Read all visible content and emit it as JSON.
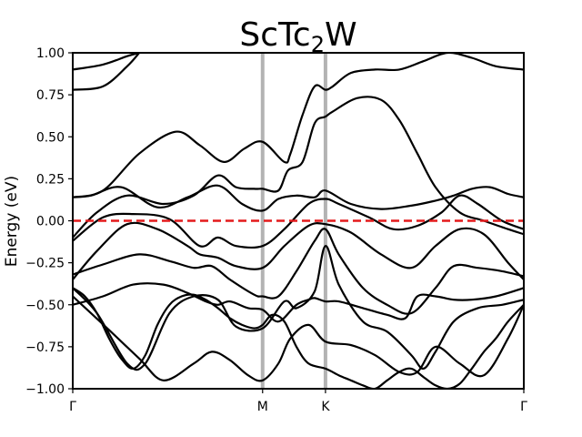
{
  "chart_data": {
    "type": "line",
    "title_main": "ScTc",
    "title_sub": "2",
    "title_tail": "W",
    "ylabel": "Energy (eV)",
    "xlabel": "",
    "ylim": [
      -1.0,
      1.0
    ],
    "xlim": [
      0,
      3.73
    ],
    "grid": false,
    "y_ticks": [
      -1.0,
      -0.75,
      -0.5,
      -0.25,
      0.0,
      0.25,
      0.5,
      0.75,
      1.0
    ],
    "y_tick_labels": [
      "−1.00",
      "−0.75",
      "−0.50",
      "−0.25",
      "0.00",
      "0.25",
      "0.50",
      "0.75",
      "1.00"
    ],
    "kpoints": [
      {
        "label": "Γ",
        "x": 0
      },
      {
        "label": "M",
        "x": 1.57
      },
      {
        "label": "K",
        "x": 2.09
      },
      {
        "label": "Γ",
        "x": 3.73
      }
    ],
    "fermi_level": 0.0,
    "colors": {
      "bands": "#000000",
      "fermi": "#e31a1c",
      "kpath": "#b3b3b3"
    },
    "series": [
      {
        "x": [
          0,
          0.25,
          0.45,
          0.55
        ],
        "values": [
          0.9,
          0.93,
          0.98,
          1.0
        ]
      },
      {
        "x": [
          0,
          0.25,
          0.45,
          0.55
        ],
        "values": [
          0.78,
          0.8,
          0.92,
          1.0
        ]
      },
      {
        "x": [
          0,
          0.25,
          0.55,
          0.85,
          1.05,
          1.25,
          1.42,
          1.57,
          1.75,
          1.8,
          1.9,
          2.0,
          2.09,
          2.15,
          2.3,
          2.5,
          2.7,
          2.9,
          3.1,
          3.3,
          3.5,
          3.73
        ],
        "values": [
          0.14,
          0.18,
          0.4,
          0.53,
          0.45,
          0.35,
          0.43,
          0.47,
          0.35,
          0.4,
          0.63,
          0.8,
          0.78,
          0.8,
          0.88,
          0.9,
          0.9,
          0.95,
          1.0,
          0.97,
          0.92,
          0.9
        ]
      },
      {
        "x": [
          0,
          0.2,
          0.45,
          0.75,
          1.0,
          1.2,
          1.35,
          1.5,
          1.57,
          1.7,
          1.78,
          1.9,
          2.0,
          2.09,
          2.15,
          2.35,
          2.55,
          2.7,
          2.85,
          3.0,
          3.2,
          3.4,
          3.6,
          3.73
        ],
        "values": [
          -0.1,
          0.05,
          0.15,
          0.1,
          0.15,
          0.27,
          0.2,
          0.19,
          0.19,
          0.18,
          0.3,
          0.35,
          0.58,
          0.62,
          0.65,
          0.73,
          0.72,
          0.6,
          0.4,
          0.2,
          0.05,
          0.0,
          -0.05,
          -0.08
        ]
      },
      {
        "x": [
          0,
          0.15,
          0.4,
          0.7,
          0.95,
          1.2,
          1.4,
          1.57,
          1.7,
          1.85,
          2.0,
          2.09,
          2.3,
          2.55,
          2.8,
          3.0,
          3.15,
          3.3,
          3.45,
          3.6,
          3.73
        ],
        "values": [
          0.14,
          0.15,
          0.2,
          0.08,
          0.14,
          0.21,
          0.1,
          0.06,
          0.13,
          0.15,
          0.14,
          0.18,
          0.1,
          0.07,
          0.09,
          0.12,
          0.15,
          0.19,
          0.2,
          0.16,
          0.14
        ]
      },
      {
        "x": [
          0,
          0.25,
          0.5,
          0.8,
          1.05,
          1.2,
          1.35,
          1.57,
          1.75,
          1.95,
          2.09,
          2.2,
          2.45,
          2.65,
          2.85,
          3.05,
          3.2,
          3.35,
          3.55,
          3.73
        ],
        "values": [
          -0.12,
          0.02,
          0.04,
          0.01,
          -0.15,
          -0.1,
          -0.15,
          -0.15,
          -0.05,
          0.1,
          0.13,
          0.1,
          0.02,
          -0.05,
          -0.03,
          0.05,
          0.15,
          0.1,
          0.0,
          -0.05
        ]
      },
      {
        "x": [
          0,
          0.2,
          0.45,
          0.7,
          0.95,
          1.05,
          1.2,
          1.35,
          1.57,
          1.75,
          1.95,
          2.09,
          2.3,
          2.55,
          2.8,
          3.0,
          3.2,
          3.4,
          3.6,
          3.73
        ],
        "values": [
          -0.35,
          -0.18,
          -0.02,
          -0.05,
          -0.15,
          -0.2,
          -0.22,
          -0.27,
          -0.28,
          -0.15,
          -0.03,
          -0.02,
          -0.07,
          -0.2,
          -0.28,
          -0.15,
          -0.05,
          -0.08,
          -0.25,
          -0.35
        ]
      },
      {
        "x": [
          0,
          0.25,
          0.55,
          0.8,
          1.0,
          1.15,
          1.3,
          1.5,
          1.57,
          1.7,
          1.85,
          2.0,
          2.09,
          2.2,
          2.4,
          2.6,
          2.8,
          3.0,
          3.15,
          3.35,
          3.55,
          3.73
        ],
        "values": [
          -0.32,
          -0.26,
          -0.2,
          -0.24,
          -0.28,
          -0.27,
          -0.35,
          -0.44,
          -0.45,
          -0.45,
          -0.3,
          -0.12,
          -0.05,
          -0.2,
          -0.4,
          -0.5,
          -0.55,
          -0.4,
          -0.27,
          -0.28,
          -0.3,
          -0.33
        ]
      },
      {
        "x": [
          0,
          0.25,
          0.5,
          0.75,
          0.95,
          1.1,
          1.2,
          1.3,
          1.45,
          1.57,
          1.7,
          1.85,
          1.95,
          2.0,
          2.09,
          2.2,
          2.4,
          2.6,
          2.75,
          2.85,
          3.0,
          3.15,
          3.3,
          3.5,
          3.73
        ],
        "values": [
          -0.5,
          -0.45,
          -0.38,
          -0.38,
          -0.43,
          -0.48,
          -0.5,
          -0.48,
          -0.52,
          -0.53,
          -0.6,
          -0.5,
          -0.47,
          -0.46,
          -0.48,
          -0.48,
          -0.52,
          -0.56,
          -0.58,
          -0.45,
          -0.45,
          -0.47,
          -0.47,
          -0.45,
          -0.4
        ]
      },
      {
        "x": [
          0,
          0.2,
          0.45,
          0.6,
          0.8,
          1.0,
          1.2,
          1.35,
          1.57,
          1.75,
          1.85,
          2.0,
          2.09,
          2.2,
          2.4,
          2.6,
          2.8,
          2.9,
          3.0,
          3.15,
          3.35,
          3.55,
          3.73
        ],
        "values": [
          -0.4,
          -0.55,
          -0.85,
          -0.85,
          -0.55,
          -0.45,
          -0.47,
          -0.63,
          -0.64,
          -0.48,
          -0.52,
          -0.42,
          -0.15,
          -0.38,
          -0.6,
          -0.66,
          -0.8,
          -0.88,
          -0.78,
          -0.6,
          -0.52,
          -0.5,
          -0.47
        ]
      },
      {
        "x": [
          0,
          0.3,
          0.55,
          0.75,
          1.0,
          1.15,
          1.3,
          1.45,
          1.57,
          1.7,
          1.8,
          1.95,
          2.09,
          2.3,
          2.5,
          2.7,
          2.85,
          3.0,
          3.2,
          3.4,
          3.6,
          3.73
        ],
        "values": [
          -0.45,
          -0.65,
          -0.82,
          -0.95,
          -0.85,
          -0.78,
          -0.83,
          -0.92,
          -0.95,
          -0.85,
          -0.7,
          -0.62,
          -0.72,
          -0.74,
          -0.8,
          -0.9,
          -0.9,
          -0.75,
          -0.85,
          -0.92,
          -0.7,
          -0.5
        ]
      },
      {
        "x": [
          0,
          0.1,
          0.2,
          0.3,
          0.4,
          0.5,
          0.6,
          0.7,
          0.8,
          0.9,
          1.0,
          1.1,
          1.2,
          1.3,
          1.4,
          1.5,
          1.57,
          1.65,
          1.75,
          1.85,
          1.95,
          2.09,
          2.2,
          2.3,
          2.4,
          2.5,
          2.6,
          2.7,
          2.8,
          2.9,
          3.0,
          3.1,
          3.2,
          3.3,
          3.4,
          3.5,
          3.6,
          3.73
        ],
        "values": [
          -0.4,
          -0.45,
          -0.55,
          -0.7,
          -0.82,
          -0.88,
          -0.8,
          -0.62,
          -0.5,
          -0.45,
          -0.44,
          -0.47,
          -0.52,
          -0.58,
          -0.62,
          -0.64,
          -0.62,
          -0.56,
          -0.6,
          -0.75,
          -0.85,
          -0.88,
          -0.92,
          -0.95,
          -0.98,
          -1.0,
          -0.95,
          -0.9,
          -0.88,
          -0.93,
          -0.98,
          -1.0,
          -0.97,
          -0.88,
          -0.78,
          -0.7,
          -0.6,
          -0.5
        ]
      }
    ]
  }
}
